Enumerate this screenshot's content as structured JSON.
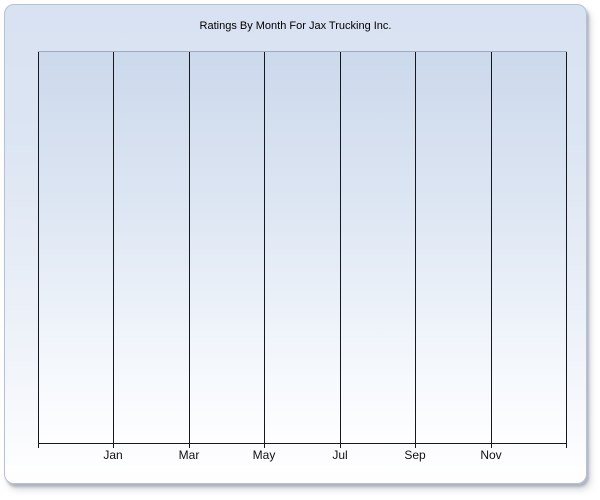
{
  "window": {
    "background": "#ffffff"
  },
  "panel": {
    "border_color": "#b6c1d5",
    "gradient_top": "#d8e2f2",
    "gradient_bottom": "#ffffff",
    "shadow_color": "#9aa0ac"
  },
  "plot": {
    "top_border_color": "#9ea9be",
    "gradient_top": "#ccd9ec",
    "gradient_bottom": "#fefeff",
    "gridline_color": "#15181e",
    "axis_color": "#15181e"
  },
  "chart_data": {
    "type": "line",
    "title": "Ratings By Month For Jax Trucking Inc.",
    "xlabel": "",
    "ylabel": "",
    "categories": [
      "Jan",
      "Mar",
      "May",
      "Jul",
      "Sep",
      "Nov"
    ],
    "series": [],
    "x_gridlines": 8,
    "labeled_gridline_indexes": [
      1,
      2,
      3,
      4,
      5,
      6
    ],
    "grid": "vertical-only",
    "legend": "none",
    "y_axis_ticks": "none"
  }
}
